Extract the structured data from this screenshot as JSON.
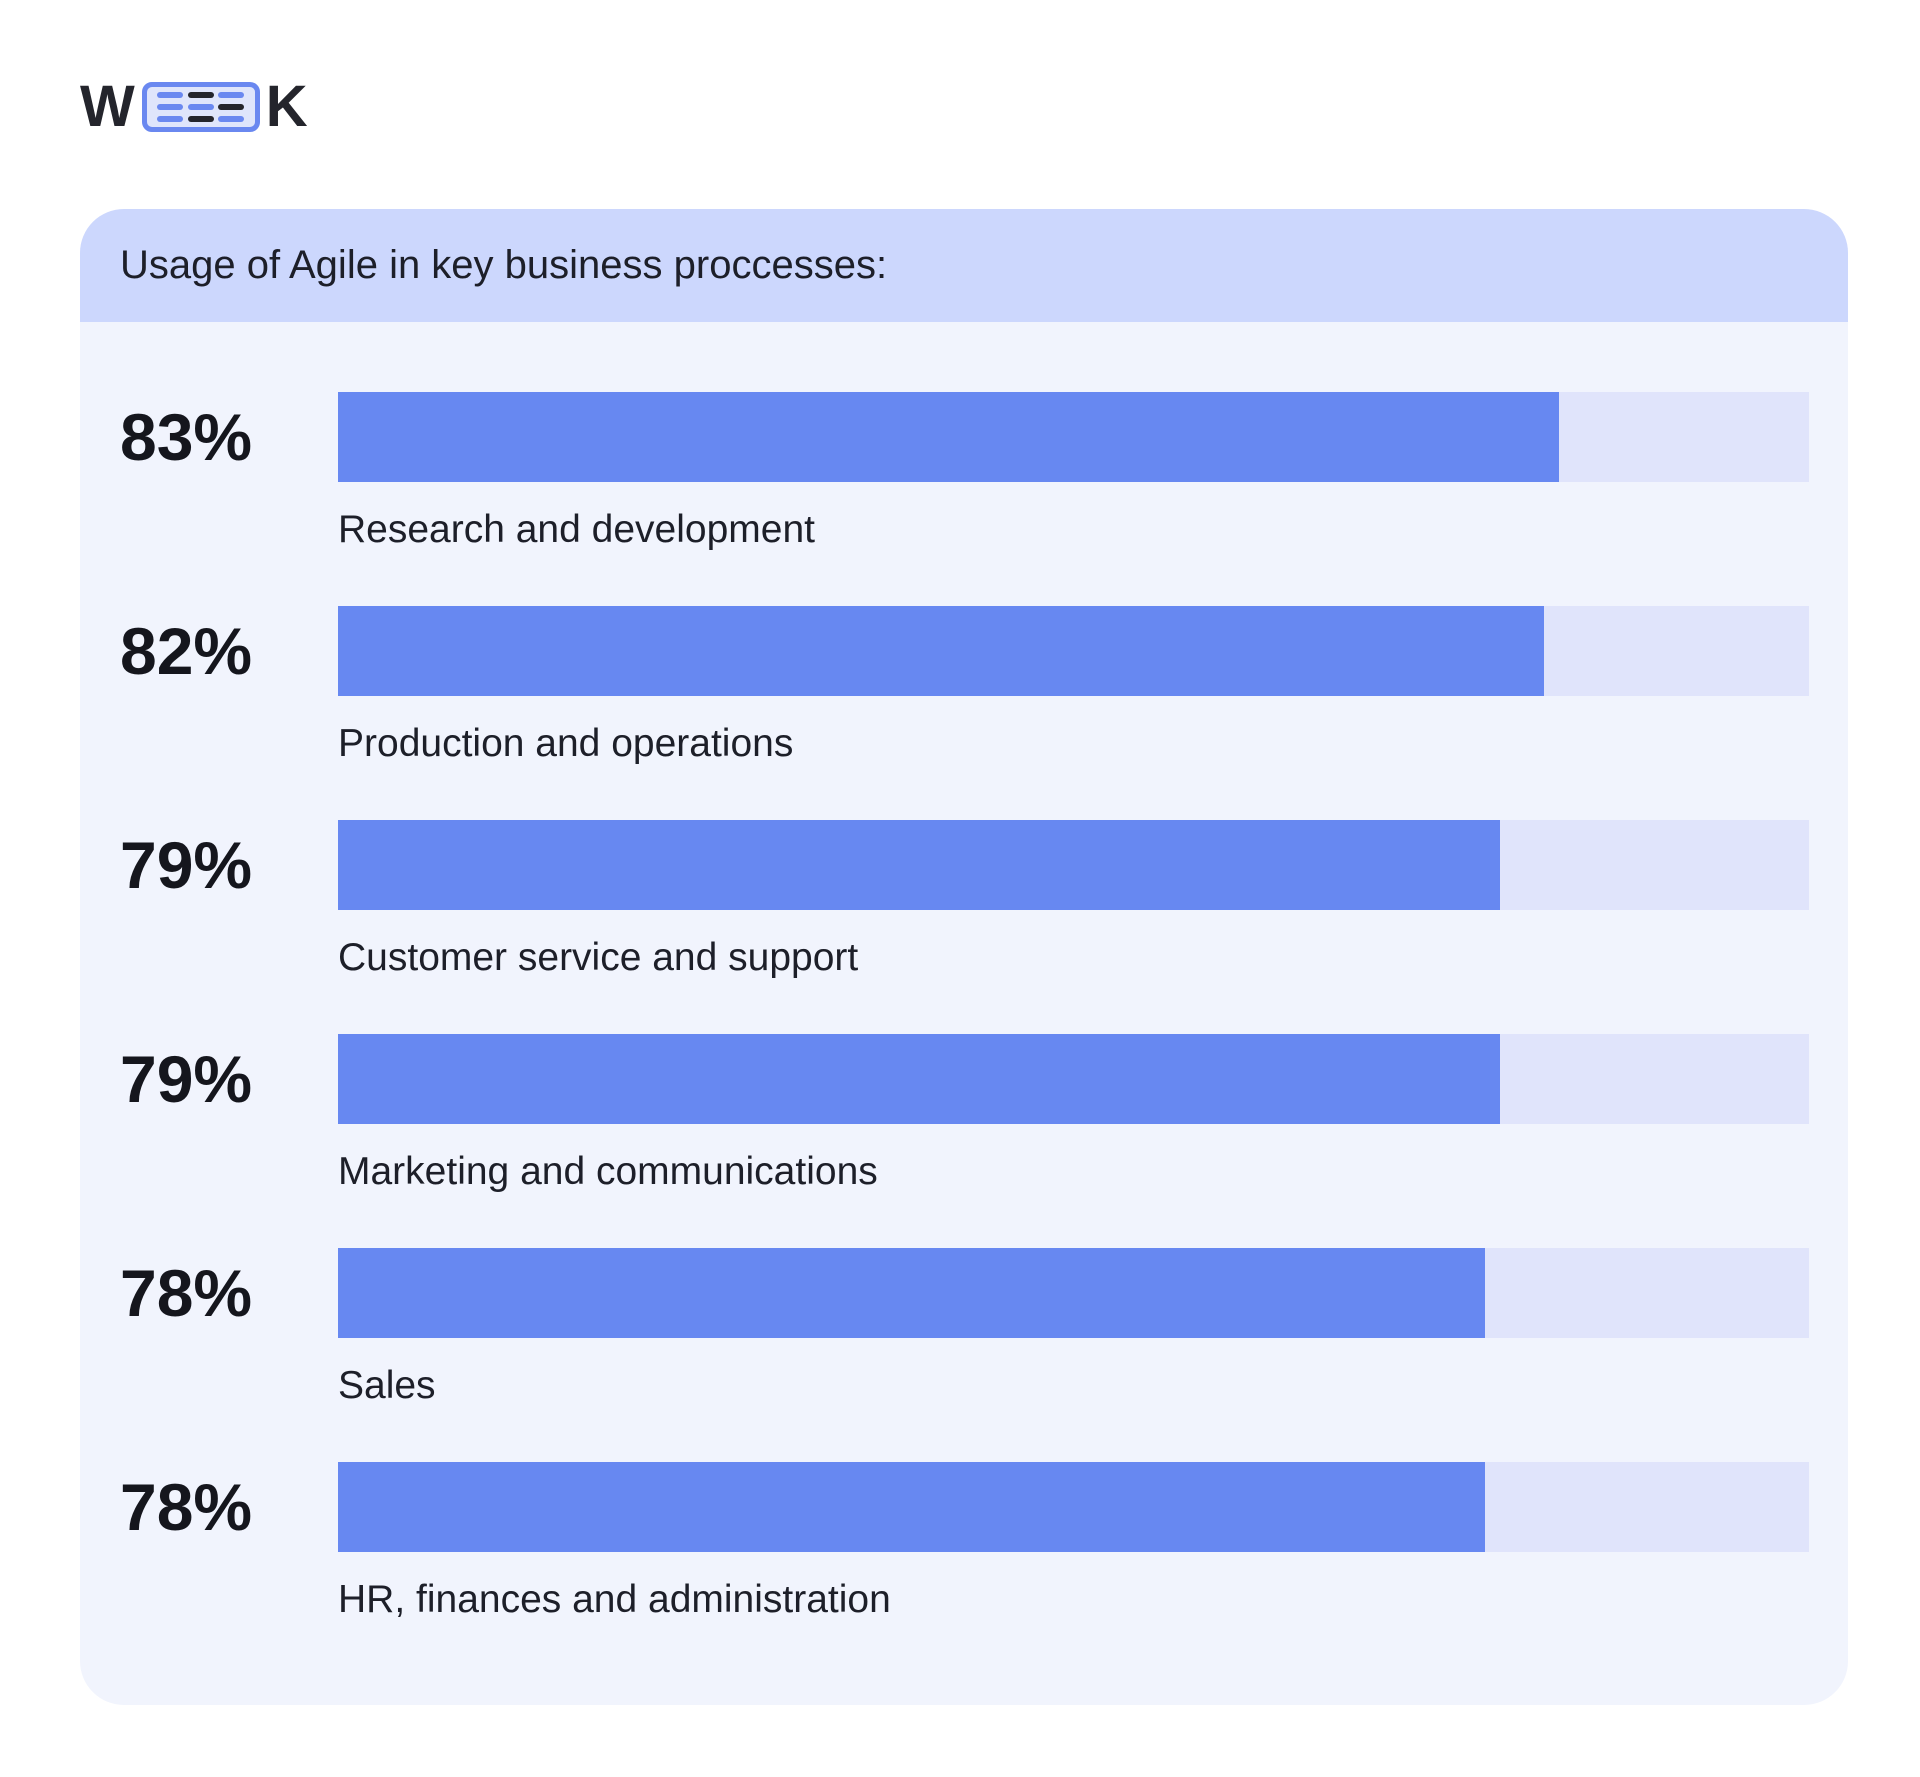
{
  "brand": {
    "letter_left": "W",
    "letter_right": "K"
  },
  "colors": {
    "accent": "#6788f1",
    "track": "#e0e4fb",
    "header": "#ccd7fd",
    "card": "#f1f4fd"
  },
  "chart_data": {
    "type": "bar",
    "orientation": "horizontal",
    "title": "Usage of Agile in key business proccesses:",
    "categories": [
      "Research and development",
      "Production and operations",
      "Customer service and support",
      "Marketing and communications",
      "Sales",
      "HR, finances and administration"
    ],
    "values": [
      83,
      82,
      79,
      79,
      78,
      78
    ],
    "value_labels": [
      "83%",
      "82%",
      "79%",
      "79%",
      "78%",
      "78%"
    ],
    "xlim": [
      0,
      100
    ],
    "grid": false,
    "legend": "none"
  }
}
